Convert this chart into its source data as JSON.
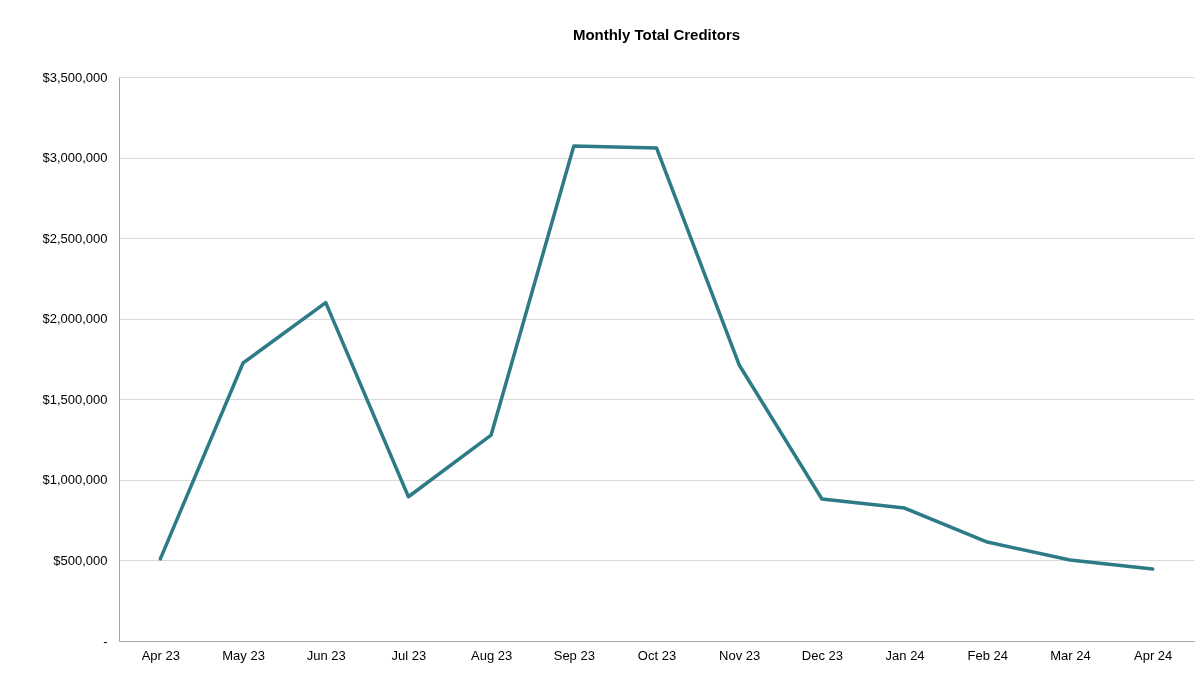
{
  "chart_data": {
    "type": "line",
    "title": "Monthly Total Creditors",
    "categories": [
      "Apr 23",
      "May 23",
      "Jun 23",
      "Jul 23",
      "Aug 23",
      "Sep 23",
      "Oct 23",
      "Nov 23",
      "Dec 23",
      "Jan 24",
      "Feb 24",
      "Mar 24",
      "Apr 24"
    ],
    "series": [
      {
        "color": "#2e7b88",
        "values": [
          510000,
          1725000,
          2100000,
          895000,
          1278000,
          3072000,
          3060000,
          1713000,
          881000,
          825000,
          614000,
          503000,
          447000
        ]
      }
    ],
    "ylim": [
      0,
      3500000
    ],
    "yticks": [
      {
        "value": 0,
        "label": "-"
      },
      {
        "value": 500000,
        "label": "$500,000"
      },
      {
        "value": 1000000,
        "label": "$1,000,000"
      },
      {
        "value": 1500000,
        "label": "$1,500,000"
      },
      {
        "value": 2000000,
        "label": "$2,000,000"
      },
      {
        "value": 2500000,
        "label": "$2,500,000"
      },
      {
        "value": 3000000,
        "label": "$3,000,000"
      },
      {
        "value": 3500000,
        "label": "$3,500,000"
      }
    ],
    "grid": "y",
    "legend": false,
    "marker": "none",
    "line_style": "solid"
  }
}
